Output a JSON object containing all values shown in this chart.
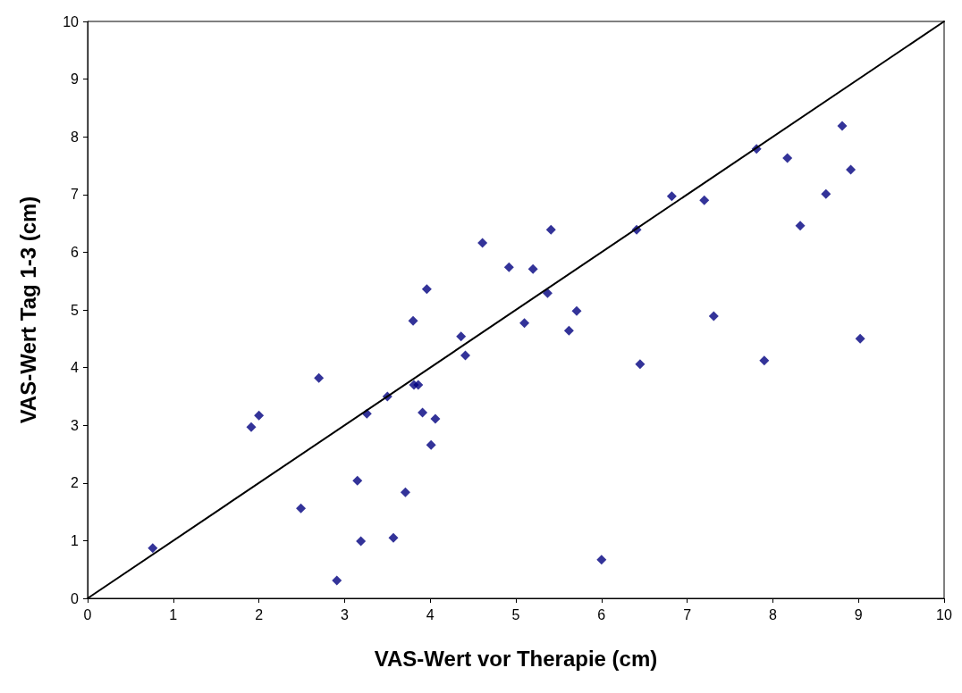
{
  "chart_data": {
    "type": "scatter",
    "xlabel": "VAS-Wert vor Therapie (cm)",
    "ylabel": "VAS-Wert Tag 1-3 (cm)",
    "xlim": [
      0,
      10
    ],
    "xticks": [
      0,
      1,
      2,
      3,
      4,
      5,
      6,
      7,
      8,
      9,
      10
    ],
    "ylim": [
      0,
      10
    ],
    "yticks": [
      0,
      1,
      2,
      3,
      4,
      5,
      6,
      7,
      8,
      9,
      10
    ],
    "grid": false,
    "marker": "diamond",
    "series": [
      {
        "color": "#000080",
        "x": [
          0.76,
          1.91,
          2.0,
          2.49,
          2.7,
          2.91,
          3.15,
          3.19,
          3.26,
          3.5,
          3.57,
          3.71,
          3.8,
          3.81,
          3.86,
          3.91,
          3.96,
          4.01,
          4.06,
          4.36,
          4.41,
          4.61,
          4.92,
          5.1,
          5.2,
          5.37,
          5.41,
          5.62,
          5.71,
          6.0,
          6.41,
          6.45,
          6.82,
          7.2,
          7.31,
          7.81,
          7.9,
          8.17,
          8.32,
          8.62,
          8.81,
          8.91,
          9.02
        ],
        "values": [
          0.87,
          2.97,
          3.17,
          1.56,
          3.82,
          0.31,
          2.04,
          0.99,
          3.2,
          3.5,
          1.05,
          1.84,
          4.81,
          3.7,
          3.7,
          3.22,
          5.36,
          2.66,
          3.11,
          4.54,
          4.21,
          6.16,
          5.74,
          4.77,
          5.71,
          5.29,
          6.39,
          4.64,
          4.98,
          0.67,
          6.39,
          4.06,
          6.97,
          6.9,
          4.89,
          7.79,
          4.12,
          7.63,
          6.46,
          7.01,
          8.19,
          7.43,
          4.5
        ]
      },
      {
        "type": "line",
        "color": "#000000",
        "marker": "none",
        "line_style": "solid",
        "x": [
          0,
          10
        ],
        "values": [
          0,
          10
        ]
      }
    ]
  }
}
